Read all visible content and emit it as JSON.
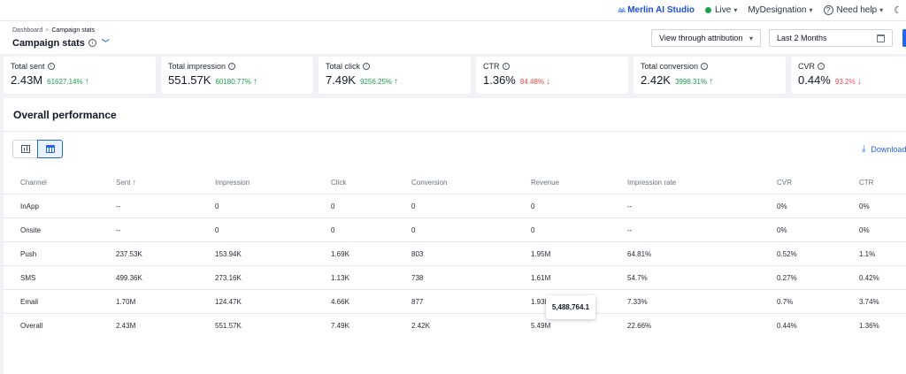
{
  "topbar": {
    "brand": "Merlin AI Studio",
    "brand_icon": "merlin-logo-icon",
    "live": "Live",
    "live_color": "#16a34a",
    "workspace": "MyDesignation",
    "help": "Need help"
  },
  "breadcrumb": {
    "root": "Dashboard",
    "separator": ">",
    "current": "Campaign stats"
  },
  "page": {
    "title": "Campaign stats",
    "attribution_select": "View through attribution",
    "date_range": "Last 2 Months"
  },
  "kpis": [
    {
      "label": "Total sent",
      "value": "2.43M",
      "change": "61627.14%",
      "direction": "up"
    },
    {
      "label": "Total impression",
      "value": "551.57K",
      "change": "60180.77%",
      "direction": "up"
    },
    {
      "label": "Total click",
      "value": "7.49K",
      "change": "9256.25%",
      "direction": "up"
    },
    {
      "label": "CTR",
      "value": "1.36%",
      "change": "84.48%",
      "direction": "down"
    },
    {
      "label": "Total conversion",
      "value": "2.42K",
      "change": "3998.31%",
      "direction": "up"
    },
    {
      "label": "CVR",
      "value": "0.44%",
      "change": "93.2%",
      "direction": "down"
    }
  ],
  "performance": {
    "title": "Overall performance",
    "download_label": "Download",
    "accent": "#2563eb",
    "columns": [
      "Channel",
      "Sent",
      "Impression",
      "Click",
      "Conversion",
      "Revenue",
      "Impression rate",
      "CVR",
      "CTR"
    ],
    "rows": [
      [
        "InApp",
        "--",
        "0",
        "0",
        "0",
        "0",
        "--",
        "0%",
        "0%"
      ],
      [
        "Onsite",
        "--",
        "0",
        "0",
        "0",
        "0",
        "--",
        "0%",
        "0%"
      ],
      [
        "Push",
        "237.53K",
        "153.94K",
        "1.69K",
        "803",
        "1.95M",
        "64.81%",
        "0.52%",
        "1.1%"
      ],
      [
        "SMS",
        "499.36K",
        "273.16K",
        "1.13K",
        "738",
        "1.61M",
        "54.7%",
        "0.27%",
        "0.42%"
      ],
      [
        "Email",
        "1.70M",
        "124.47K",
        "4.66K",
        "877",
        "1.93M",
        "7.33%",
        "0.7%",
        "3.74%"
      ],
      [
        "Overall",
        "2.43M",
        "551.57K",
        "7.49K",
        "2.42K",
        "5.49M",
        "22.66%",
        "0.44%",
        "1.36%"
      ]
    ],
    "tooltip": "5,488,764.1"
  }
}
